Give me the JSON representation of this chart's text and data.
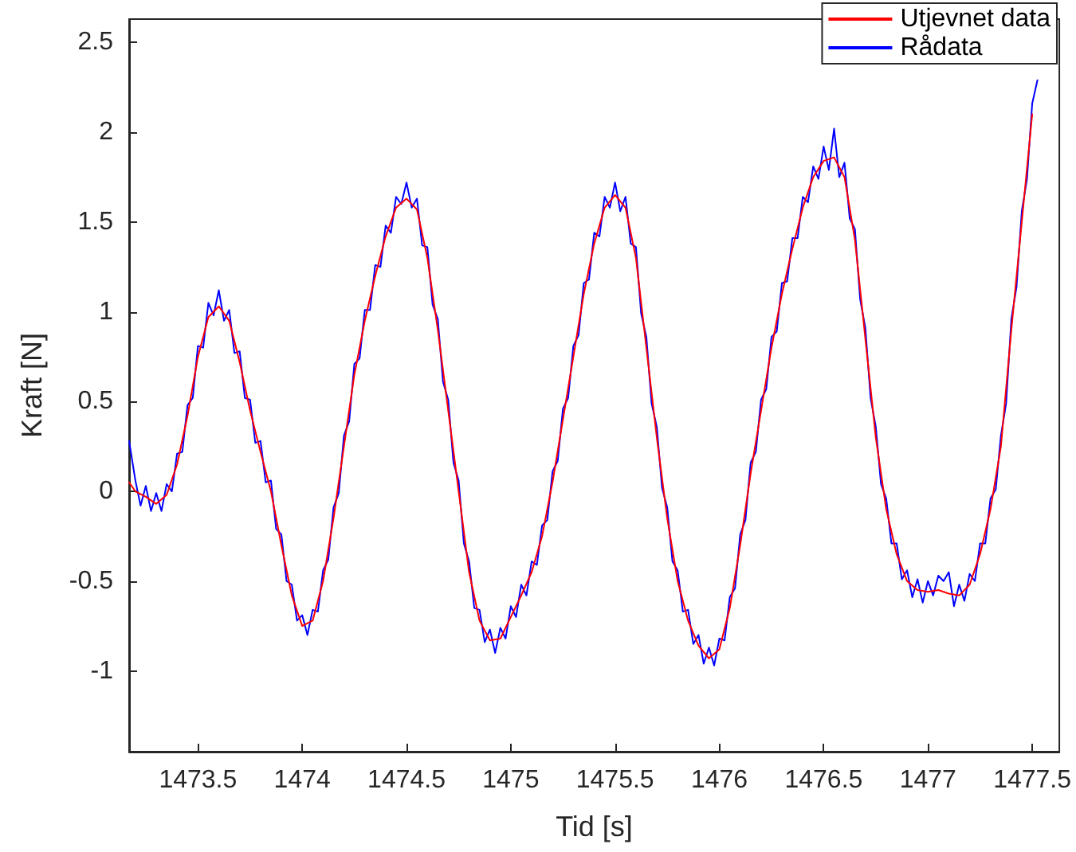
{
  "chart_data": {
    "type": "line",
    "xlabel": "Tid [s]",
    "ylabel": "Kraft [N]",
    "xlim": [
      1473.17,
      1477.63
    ],
    "xticks": [
      1473.5,
      1474,
      1474.5,
      1475,
      1475.5,
      1476,
      1476.5,
      1477,
      1477.5
    ],
    "ylim": [
      -1.45,
      2.63
    ],
    "yticks": [
      -1,
      -0.5,
      0,
      0.5,
      1,
      1.5,
      2,
      2.5
    ],
    "grid": false,
    "legend": "top right",
    "marker": "none",
    "line_style": "solid",
    "series": [
      {
        "name": "Utjevnet data",
        "color": "#ff0000",
        "x": [
          1473.17,
          1473.2,
          1473.25,
          1473.3,
          1473.35,
          1473.4,
          1473.45,
          1473.5,
          1473.55,
          1473.6,
          1473.65,
          1473.7,
          1473.75,
          1473.8,
          1473.85,
          1473.9,
          1473.95,
          1474,
          1474.05,
          1474.1,
          1474.15,
          1474.2,
          1474.25,
          1474.3,
          1474.35,
          1474.4,
          1474.45,
          1474.5,
          1474.55,
          1474.6,
          1474.65,
          1474.7,
          1474.75,
          1474.8,
          1474.85,
          1474.9,
          1474.95,
          1475,
          1475.05,
          1475.1,
          1475.15,
          1475.2,
          1475.25,
          1475.3,
          1475.35,
          1475.4,
          1475.45,
          1475.5,
          1475.55,
          1475.6,
          1475.65,
          1475.7,
          1475.75,
          1475.8,
          1475.85,
          1475.9,
          1475.95,
          1476,
          1476.05,
          1476.1,
          1476.15,
          1476.2,
          1476.25,
          1476.3,
          1476.35,
          1476.4,
          1476.45,
          1476.5,
          1476.55,
          1476.6,
          1476.65,
          1476.7,
          1476.75,
          1476.8,
          1476.85,
          1476.9,
          1476.95,
          1477,
          1477.05,
          1477.1,
          1477.15,
          1477.2,
          1477.25,
          1477.3,
          1477.35,
          1477.4,
          1477.45,
          1477.5
        ],
        "values": [
          0.05,
          0,
          -0.03,
          -0.07,
          -0.02,
          0.15,
          0.42,
          0.75,
          0.97,
          1.03,
          0.95,
          0.72,
          0.45,
          0.22,
          0,
          -0.3,
          -0.58,
          -0.75,
          -0.72,
          -0.5,
          -0.15,
          0.25,
          0.65,
          0.95,
          1.2,
          1.42,
          1.58,
          1.63,
          1.57,
          1.3,
          0.9,
          0.45,
          0,
          -0.45,
          -0.72,
          -0.83,
          -0.82,
          -0.7,
          -0.58,
          -0.45,
          -0.25,
          0.05,
          0.4,
          0.75,
          1.1,
          1.38,
          1.58,
          1.65,
          1.58,
          1.3,
          0.8,
          0.3,
          -0.15,
          -0.5,
          -0.72,
          -0.86,
          -0.93,
          -0.88,
          -0.65,
          -0.3,
          0.1,
          0.45,
          0.8,
          1.1,
          1.35,
          1.58,
          1.75,
          1.84,
          1.86,
          1.75,
          1.4,
          0.85,
          0.3,
          -0.1,
          -0.35,
          -0.5,
          -0.55,
          -0.56,
          -0.55,
          -0.57,
          -0.58,
          -0.52,
          -0.35,
          -0.1,
          0.25,
          0.9,
          1.5,
          2.1
        ]
      },
      {
        "name": "Rådata",
        "color": "#0000ff",
        "x": [
          1473.17,
          1473.2,
          1473.225,
          1473.25,
          1473.275,
          1473.3,
          1473.325,
          1473.35,
          1473.375,
          1473.4,
          1473.425,
          1473.45,
          1473.475,
          1473.5,
          1473.525,
          1473.55,
          1473.575,
          1473.6,
          1473.625,
          1473.65,
          1473.675,
          1473.7,
          1473.725,
          1473.75,
          1473.775,
          1473.8,
          1473.825,
          1473.85,
          1473.875,
          1473.9,
          1473.925,
          1473.95,
          1473.975,
          1474,
          1474.025,
          1474.05,
          1474.075,
          1474.1,
          1474.125,
          1474.15,
          1474.175,
          1474.2,
          1474.225,
          1474.25,
          1474.275,
          1474.3,
          1474.325,
          1474.35,
          1474.375,
          1474.4,
          1474.425,
          1474.45,
          1474.475,
          1474.5,
          1474.525,
          1474.55,
          1474.575,
          1474.6,
          1474.625,
          1474.65,
          1474.675,
          1474.7,
          1474.725,
          1474.75,
          1474.775,
          1474.8,
          1474.825,
          1474.85,
          1474.875,
          1474.9,
          1474.925,
          1474.95,
          1474.975,
          1475,
          1475.025,
          1475.05,
          1475.075,
          1475.1,
          1475.125,
          1475.15,
          1475.175,
          1475.2,
          1475.225,
          1475.25,
          1475.275,
          1475.3,
          1475.325,
          1475.35,
          1475.375,
          1475.4,
          1475.425,
          1475.45,
          1475.475,
          1475.5,
          1475.525,
          1475.55,
          1475.575,
          1475.6,
          1475.625,
          1475.65,
          1475.675,
          1475.7,
          1475.725,
          1475.75,
          1475.775,
          1475.8,
          1475.825,
          1475.85,
          1475.875,
          1475.9,
          1475.925,
          1475.95,
          1475.975,
          1476,
          1476.025,
          1476.05,
          1476.075,
          1476.1,
          1476.125,
          1476.15,
          1476.175,
          1476.2,
          1476.225,
          1476.25,
          1476.275,
          1476.3,
          1476.325,
          1476.35,
          1476.375,
          1476.4,
          1476.425,
          1476.45,
          1476.475,
          1476.5,
          1476.525,
          1476.55,
          1476.575,
          1476.6,
          1476.625,
          1476.65,
          1476.675,
          1476.7,
          1476.725,
          1476.75,
          1476.775,
          1476.8,
          1476.825,
          1476.85,
          1476.875,
          1476.9,
          1476.925,
          1476.95,
          1476.975,
          1477,
          1477.025,
          1477.05,
          1477.075,
          1477.1,
          1477.125,
          1477.15,
          1477.175,
          1477.2,
          1477.225,
          1477.25,
          1477.275,
          1477.3,
          1477.325,
          1477.35,
          1477.375,
          1477.4,
          1477.425,
          1477.45,
          1477.475,
          1477.5,
          1477.525
        ],
        "values": [
          0.28,
          0.06,
          -0.08,
          0.03,
          -0.11,
          -0.01,
          -0.11,
          0.04,
          0,
          0.21,
          0.22,
          0.48,
          0.52,
          0.81,
          0.8,
          1.05,
          0.98,
          1.12,
          0.95,
          1.01,
          0.77,
          0.78,
          0.52,
          0.51,
          0.27,
          0.28,
          0.05,
          0.06,
          -0.21,
          -0.24,
          -0.5,
          -0.52,
          -0.72,
          -0.69,
          -0.8,
          -0.66,
          -0.67,
          -0.44,
          -0.38,
          -0.09,
          -0.01,
          0.31,
          0.39,
          0.71,
          0.74,
          1.01,
          1.01,
          1.26,
          1.25,
          1.48,
          1.44,
          1.64,
          1.6,
          1.72,
          1.58,
          1.63,
          1.37,
          1.36,
          1.04,
          0.96,
          0.61,
          0.51,
          0.16,
          0.06,
          -0.29,
          -0.39,
          -0.65,
          -0.66,
          -0.84,
          -0.77,
          -0.9,
          -0.76,
          -0.82,
          -0.64,
          -0.7,
          -0.52,
          -0.58,
          -0.39,
          -0.41,
          -0.19,
          -0.16,
          0.11,
          0.17,
          0.46,
          0.52,
          0.81,
          0.87,
          1.16,
          1.18,
          1.44,
          1.42,
          1.64,
          1.58,
          1.72,
          1.56,
          1.64,
          1.38,
          1.36,
          0.99,
          0.86,
          0.49,
          0.36,
          0.02,
          -0.09,
          -0.39,
          -0.44,
          -0.67,
          -0.66,
          -0.85,
          -0.8,
          -0.96,
          -0.87,
          -0.97,
          -0.82,
          -0.83,
          -0.59,
          -0.54,
          -0.24,
          -0.16,
          0.16,
          0.22,
          0.51,
          0.57,
          0.86,
          0.89,
          1.16,
          1.17,
          1.41,
          1.41,
          1.64,
          1.61,
          1.81,
          1.74,
          1.92,
          1.79,
          2.02,
          1.75,
          1.83,
          1.52,
          1.46,
          1.07,
          0.91,
          0.52,
          0.36,
          0.04,
          -0.04,
          -0.29,
          -0.29,
          -0.49,
          -0.44,
          -0.59,
          -0.49,
          -0.62,
          -0.5,
          -0.58,
          -0.47,
          -0.5,
          -0.45,
          -0.64,
          -0.52,
          -0.61,
          -0.46,
          -0.5,
          -0.29,
          -0.29,
          -0.04,
          0.01,
          0.31,
          0.49,
          0.96,
          1.14,
          1.56,
          1.74,
          2.16,
          2.29
        ]
      }
    ]
  }
}
